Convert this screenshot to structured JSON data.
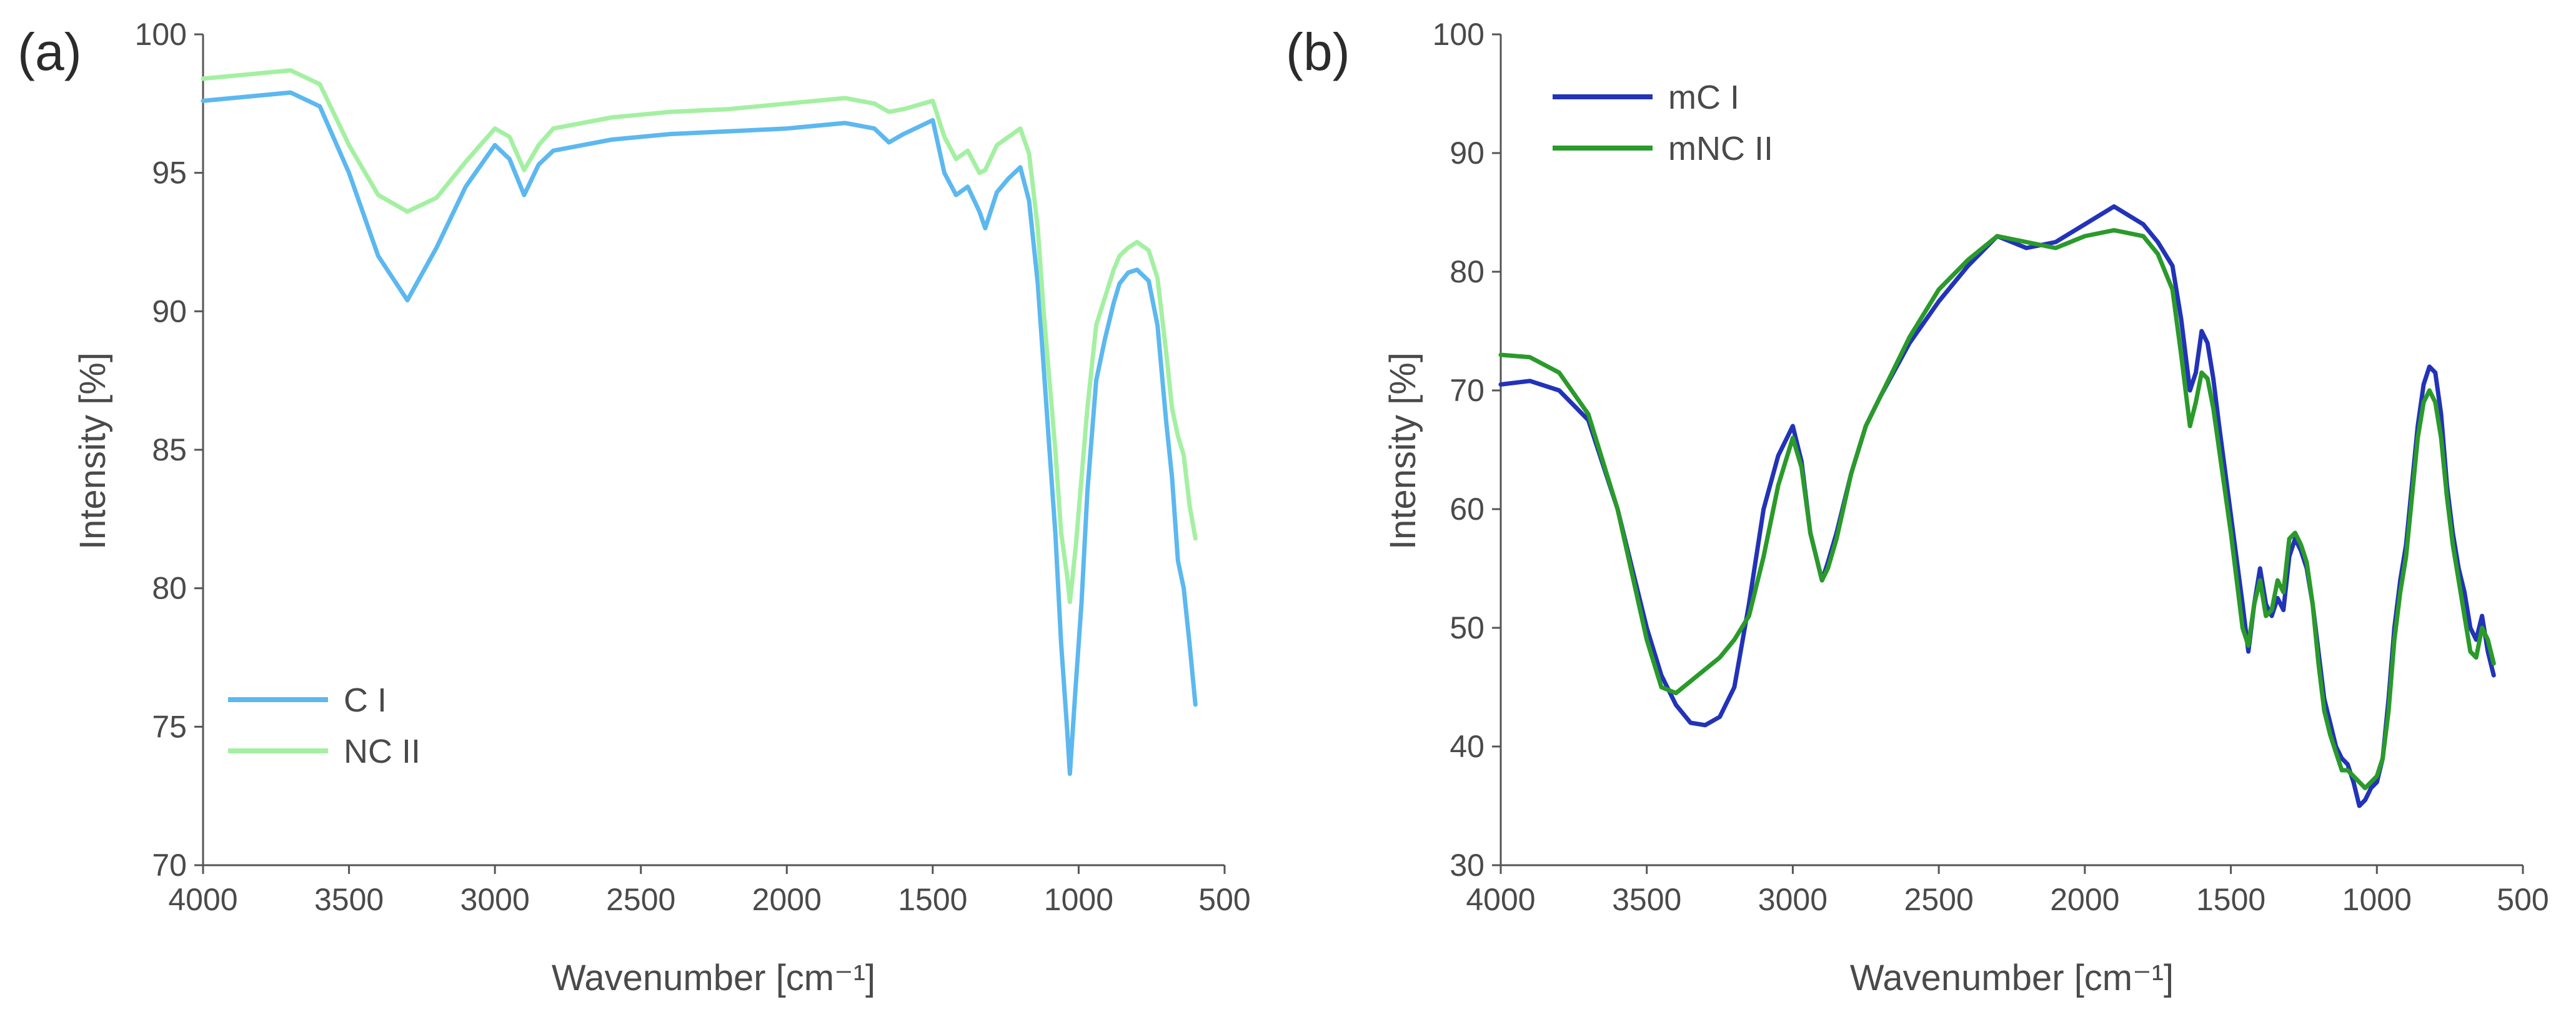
{
  "chart_data": [
    {
      "type": "line",
      "panel_label": "(a)",
      "xlabel": "Wavenumber [cm⁻¹]",
      "ylabel": "Intensity [%]",
      "xlim": [
        4000,
        500
      ],
      "ylim": [
        70,
        100
      ],
      "xticks": [
        4000,
        3500,
        3000,
        2500,
        2000,
        1500,
        1000,
        500
      ],
      "yticks": [
        70,
        75,
        80,
        85,
        90,
        95,
        100
      ],
      "grid": false,
      "legend_position": "bottom-left",
      "series": [
        {
          "name": "C I",
          "color": "#5cb8ef",
          "x": [
            4000,
            3700,
            3600,
            3500,
            3400,
            3300,
            3200,
            3100,
            3000,
            2950,
            2900,
            2850,
            2800,
            2600,
            2400,
            2200,
            2000,
            1800,
            1700,
            1650,
            1600,
            1500,
            1460,
            1420,
            1380,
            1340,
            1320,
            1280,
            1240,
            1200,
            1170,
            1160,
            1140,
            1120,
            1100,
            1080,
            1060,
            1040,
            1030,
            1010,
            990,
            970,
            940,
            910,
            880,
            860,
            830,
            800,
            760,
            730,
            700,
            680,
            660,
            640,
            620,
            600
          ],
          "y": [
            97.6,
            97.9,
            97.4,
            95.0,
            92.0,
            90.4,
            92.3,
            94.5,
            96.0,
            95.5,
            94.2,
            95.3,
            95.8,
            96.2,
            96.4,
            96.5,
            96.6,
            96.8,
            96.6,
            96.1,
            96.4,
            96.9,
            95.0,
            94.2,
            94.5,
            93.6,
            93.0,
            94.3,
            94.8,
            95.2,
            94.0,
            93.0,
            91.0,
            88.0,
            85.0,
            82.0,
            78.0,
            75.0,
            73.3,
            76.5,
            79.5,
            83.5,
            87.5,
            89.0,
            90.3,
            91.0,
            91.4,
            91.5,
            91.1,
            89.5,
            86.0,
            84.0,
            81.0,
            80.0,
            78.0,
            75.8
          ]
        },
        {
          "name": "NC II",
          "color": "#a4f0a2",
          "x": [
            4000,
            3700,
            3600,
            3500,
            3400,
            3300,
            3200,
            3100,
            3000,
            2950,
            2900,
            2850,
            2800,
            2600,
            2400,
            2200,
            2000,
            1800,
            1700,
            1650,
            1600,
            1500,
            1460,
            1420,
            1380,
            1340,
            1320,
            1280,
            1240,
            1200,
            1170,
            1160,
            1140,
            1120,
            1100,
            1080,
            1060,
            1040,
            1030,
            1010,
            990,
            970,
            940,
            910,
            880,
            860,
            830,
            800,
            760,
            730,
            700,
            680,
            660,
            640,
            620,
            600
          ],
          "y": [
            98.4,
            98.7,
            98.2,
            96.0,
            94.2,
            93.6,
            94.1,
            95.4,
            96.6,
            96.3,
            95.1,
            96.0,
            96.6,
            97.0,
            97.2,
            97.3,
            97.5,
            97.7,
            97.5,
            97.2,
            97.3,
            97.6,
            96.3,
            95.5,
            95.8,
            95.0,
            95.1,
            96.0,
            96.3,
            96.6,
            95.7,
            94.8,
            93.0,
            90.0,
            87.5,
            85.0,
            82.0,
            80.5,
            79.5,
            81.5,
            84.0,
            86.5,
            89.5,
            90.5,
            91.5,
            92.0,
            92.3,
            92.5,
            92.2,
            91.2,
            88.5,
            86.5,
            85.5,
            84.8,
            83.0,
            81.8
          ]
        }
      ]
    },
    {
      "type": "line",
      "panel_label": "(b)",
      "xlabel": "Wavenumber [cm⁻¹]",
      "ylabel": "Intensity [%]",
      "xlim": [
        4000,
        500
      ],
      "ylim": [
        30,
        100
      ],
      "xticks": [
        4000,
        3500,
        3000,
        2500,
        2000,
        1500,
        1000,
        500
      ],
      "yticks": [
        30,
        40,
        50,
        60,
        70,
        80,
        90,
        100
      ],
      "grid": false,
      "legend_position": "top-left",
      "series": [
        {
          "name": "mC I",
          "color": "#2233b8",
          "x": [
            4000,
            3900,
            3800,
            3700,
            3600,
            3500,
            3450,
            3400,
            3350,
            3300,
            3250,
            3200,
            3150,
            3100,
            3050,
            3000,
            2970,
            2940,
            2900,
            2880,
            2850,
            2800,
            2750,
            2700,
            2600,
            2500,
            2400,
            2300,
            2200,
            2100,
            2000,
            1900,
            1800,
            1750,
            1700,
            1670,
            1640,
            1620,
            1600,
            1580,
            1560,
            1540,
            1500,
            1460,
            1440,
            1420,
            1400,
            1380,
            1360,
            1340,
            1320,
            1300,
            1280,
            1260,
            1240,
            1220,
            1200,
            1180,
            1160,
            1140,
            1120,
            1100,
            1080,
            1060,
            1040,
            1020,
            1000,
            980,
            960,
            940,
            920,
            900,
            880,
            860,
            840,
            820,
            800,
            780,
            760,
            740,
            720,
            700,
            680,
            660,
            640,
            620,
            600
          ],
          "y": [
            70.5,
            70.8,
            70.0,
            67.5,
            60.0,
            50.0,
            46.0,
            43.5,
            42.0,
            41.8,
            42.5,
            45.0,
            52.0,
            60.0,
            64.5,
            67.0,
            64.0,
            58.0,
            54.0,
            55.5,
            58.0,
            63.0,
            67.0,
            69.5,
            74.0,
            77.5,
            80.5,
            83.0,
            82.0,
            82.5,
            84.0,
            85.5,
            84.0,
            82.5,
            80.5,
            76.0,
            70.0,
            71.5,
            75.0,
            74.0,
            71.0,
            67.0,
            59.5,
            52.0,
            48.0,
            52.0,
            55.0,
            52.0,
            51.0,
            52.5,
            51.5,
            56.0,
            57.5,
            56.5,
            55.0,
            52.0,
            48.0,
            44.0,
            42.0,
            40.0,
            39.0,
            38.5,
            37.0,
            35.0,
            35.5,
            36.5,
            37.0,
            39.0,
            44.0,
            50.0,
            54.0,
            57.0,
            62.0,
            67.0,
            70.5,
            72.0,
            71.5,
            68.0,
            62.0,
            58.0,
            55.0,
            53.0,
            50.0,
            49.0,
            51.0,
            48.0,
            46.0
          ]
        },
        {
          "name": "mNC II",
          "color": "#2a9a2a",
          "x": [
            4000,
            3900,
            3800,
            3700,
            3600,
            3500,
            3450,
            3400,
            3350,
            3300,
            3250,
            3200,
            3150,
            3100,
            3050,
            3000,
            2970,
            2940,
            2900,
            2880,
            2850,
            2800,
            2750,
            2700,
            2600,
            2500,
            2400,
            2300,
            2200,
            2100,
            2000,
            1900,
            1800,
            1750,
            1700,
            1670,
            1640,
            1620,
            1600,
            1580,
            1560,
            1540,
            1500,
            1460,
            1440,
            1420,
            1400,
            1380,
            1360,
            1340,
            1320,
            1300,
            1280,
            1260,
            1240,
            1220,
            1200,
            1180,
            1160,
            1140,
            1120,
            1100,
            1080,
            1060,
            1040,
            1020,
            1000,
            980,
            960,
            940,
            920,
            900,
            880,
            860,
            840,
            820,
            800,
            780,
            760,
            740,
            720,
            700,
            680,
            660,
            640,
            620,
            600
          ],
          "y": [
            73.0,
            72.8,
            71.5,
            68.0,
            60.0,
            49.0,
            45.0,
            44.5,
            45.5,
            46.5,
            47.5,
            49.0,
            51.0,
            56.0,
            62.0,
            66.0,
            63.5,
            58.0,
            54.0,
            55.0,
            57.5,
            63.0,
            67.0,
            69.5,
            74.5,
            78.5,
            81.0,
            83.0,
            82.5,
            82.0,
            83.0,
            83.5,
            83.0,
            81.5,
            78.5,
            73.0,
            67.0,
            69.0,
            71.5,
            71.0,
            68.5,
            65.0,
            58.0,
            50.0,
            48.5,
            52.0,
            54.0,
            51.0,
            51.5,
            54.0,
            53.0,
            57.5,
            58.0,
            57.0,
            55.5,
            52.0,
            47.0,
            43.0,
            41.0,
            39.5,
            38.0,
            38.0,
            37.5,
            37.0,
            36.5,
            37.0,
            37.5,
            39.0,
            43.0,
            49.0,
            53.0,
            56.0,
            61.0,
            66.0,
            69.0,
            70.0,
            69.0,
            66.0,
            61.0,
            57.0,
            54.0,
            51.0,
            48.0,
            47.5,
            50.0,
            49.0,
            47.0
          ]
        }
      ]
    }
  ]
}
